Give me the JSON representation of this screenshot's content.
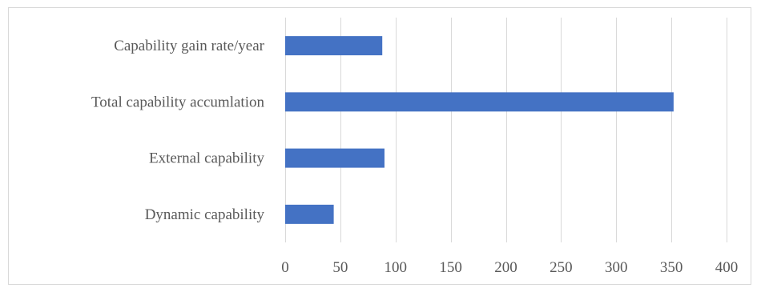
{
  "chart_data": {
    "type": "bar",
    "orientation": "horizontal",
    "categories": [
      "Dynamic capability",
      "External capability",
      "Total capability accumlation",
      "Capability gain rate/year"
    ],
    "values": [
      44,
      90,
      352,
      88
    ],
    "title": "",
    "xlabel": "",
    "ylabel": "",
    "xlim": [
      0,
      400
    ],
    "xticks": [
      0,
      50,
      100,
      150,
      200,
      250,
      300,
      350,
      400
    ],
    "grid": "vertical",
    "legend": "none",
    "colors": {
      "bar": "#4472C4",
      "grid": "#d9d9d9",
      "text": "#595959"
    }
  }
}
